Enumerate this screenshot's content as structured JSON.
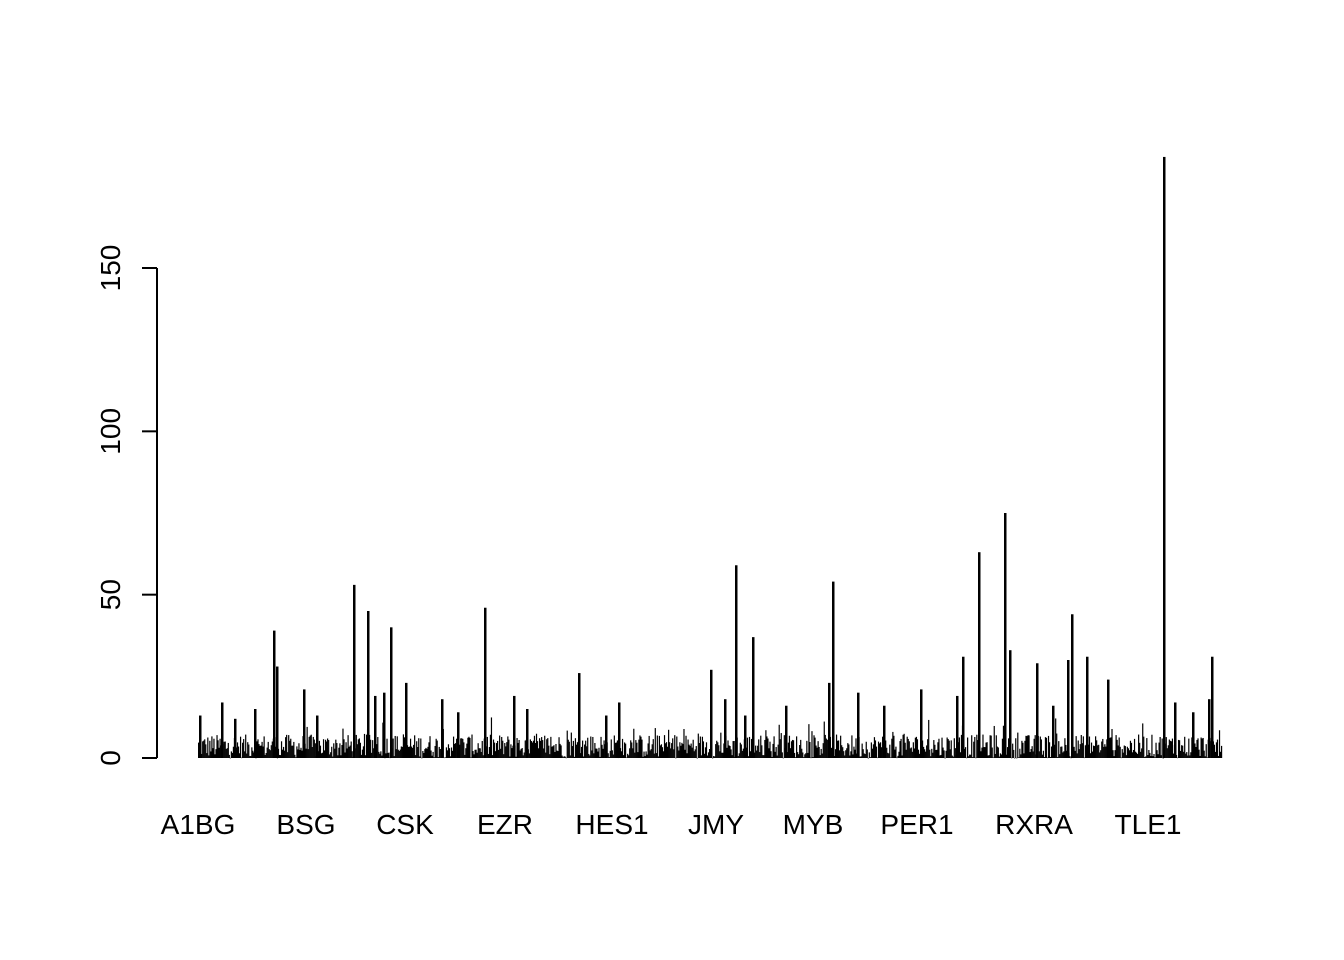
{
  "chart_data": {
    "type": "bar",
    "title": "",
    "xlabel": "",
    "ylabel": "",
    "ylim": [
      0,
      185
    ],
    "yticks": [
      0,
      50,
      100,
      150
    ],
    "category_labels": [
      "A1BG",
      "BSG",
      "CSK",
      "EZR",
      "HES1",
      "JMY",
      "MYB",
      "PER1",
      "RXRA",
      "TLE1"
    ],
    "bar_color": "#000000",
    "n_bars": 1000,
    "baseline_level": 4,
    "peaks": [
      {
        "near": "A1BG",
        "value": 13
      },
      {
        "near": "A1BG",
        "value": 17
      },
      {
        "near": "A1BG",
        "value": 12
      },
      {
        "near": "A1BG",
        "value": 15
      },
      {
        "near": "BSG",
        "value": 39
      },
      {
        "near": "BSG",
        "value": 28
      },
      {
        "near": "BSG",
        "value": 21
      },
      {
        "near": "BSG",
        "value": 13
      },
      {
        "near": "CSK",
        "value": 53
      },
      {
        "near": "CSK",
        "value": 45
      },
      {
        "near": "CSK",
        "value": 19
      },
      {
        "near": "CSK",
        "value": 20
      },
      {
        "near": "CSK",
        "value": 40
      },
      {
        "near": "CSK",
        "value": 23
      },
      {
        "near": "EZR",
        "value": 18
      },
      {
        "near": "EZR",
        "value": 14
      },
      {
        "near": "EZR",
        "value": 46
      },
      {
        "near": "EZR",
        "value": 19
      },
      {
        "near": "EZR",
        "value": 15
      },
      {
        "near": "HES1",
        "value": 26
      },
      {
        "near": "HES1",
        "value": 13
      },
      {
        "near": "HES1",
        "value": 17
      },
      {
        "near": "JMY",
        "value": 27
      },
      {
        "near": "JMY",
        "value": 18
      },
      {
        "near": "JMY",
        "value": 59
      },
      {
        "near": "JMY",
        "value": 13
      },
      {
        "near": "JMY",
        "value": 37
      },
      {
        "near": "MYB",
        "value": 16
      },
      {
        "near": "MYB",
        "value": 23
      },
      {
        "near": "MYB",
        "value": 54
      },
      {
        "near": "MYB",
        "value": 20
      },
      {
        "near": "PER1",
        "value": 16
      },
      {
        "near": "PER1",
        "value": 21
      },
      {
        "near": "PER1",
        "value": 19
      },
      {
        "near": "PER1",
        "value": 31
      },
      {
        "near": "PER1",
        "value": 63
      },
      {
        "near": "RXRA",
        "value": 75
      },
      {
        "near": "RXRA",
        "value": 33
      },
      {
        "near": "RXRA",
        "value": 29
      },
      {
        "near": "RXRA",
        "value": 16
      },
      {
        "near": "RXRA",
        "value": 30
      },
      {
        "near": "RXRA",
        "value": 44
      },
      {
        "near": "RXRA",
        "value": 31
      },
      {
        "near": "RXRA",
        "value": 24
      },
      {
        "near": "TLE1",
        "value": 184
      },
      {
        "near": "TLE1",
        "value": 17
      },
      {
        "near": "TLE1",
        "value": 14
      },
      {
        "near": "TLE1",
        "value": 18
      },
      {
        "near": "TLE1",
        "value": 31
      }
    ],
    "grid": false,
    "legend": "none"
  }
}
